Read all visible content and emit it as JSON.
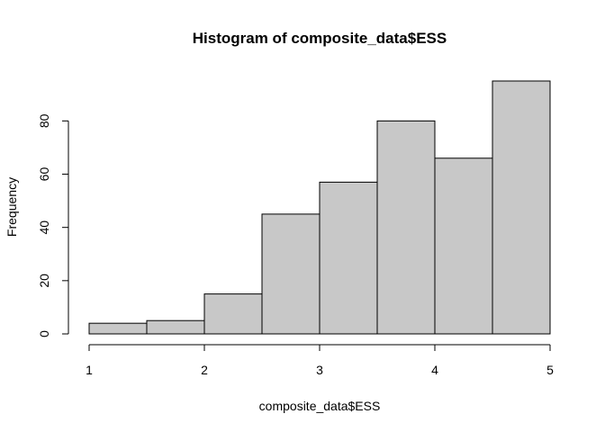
{
  "chart_data": {
    "type": "bar",
    "title": "Histogram of composite_data$ESS",
    "xlabel": "composite_data$ESS",
    "ylabel": "Frequency",
    "bins": [
      {
        "from": 1.0,
        "to": 1.5,
        "count": 4
      },
      {
        "from": 1.5,
        "to": 2.0,
        "count": 5
      },
      {
        "from": 2.0,
        "to": 2.5,
        "count": 15
      },
      {
        "from": 2.5,
        "to": 3.0,
        "count": 45
      },
      {
        "from": 3.0,
        "to": 3.5,
        "count": 57
      },
      {
        "from": 3.5,
        "to": 4.0,
        "count": 80
      },
      {
        "from": 4.0,
        "to": 4.5,
        "count": 66
      },
      {
        "from": 4.5,
        "to": 5.0,
        "count": 95
      }
    ],
    "xlim": [
      1,
      5
    ],
    "ylim": [
      0,
      95
    ],
    "x_ticks": [
      "1",
      "2",
      "3",
      "4",
      "5"
    ],
    "y_ticks": [
      "0",
      "20",
      "40",
      "60",
      "80"
    ],
    "grid": false,
    "legend": "none",
    "colors": {
      "bar_fill": "#c8c8c8",
      "bar_stroke": "#000000",
      "axis": "#000000",
      "background": "#ffffff"
    }
  }
}
